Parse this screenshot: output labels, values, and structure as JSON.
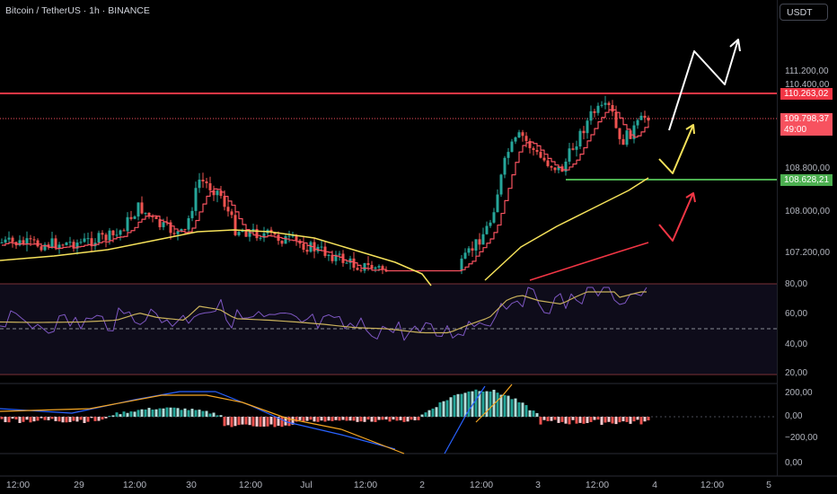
{
  "header": {
    "symbol_title": "Bitcoin / TetherUS · 1h · BINANCE",
    "currency_button": "USDT"
  },
  "price_axis": {
    "labels": [
      "111.200,00",
      "110.400,00",
      "108.800,00",
      "108.000,00",
      "107.200,00"
    ],
    "resistance_label": "110.263,02",
    "last_price_label": "109.798,37",
    "countdown_label": "49:00",
    "support_label": "108.628,21"
  },
  "rsi_axis": {
    "labels": [
      "80,00",
      "60,00",
      "40,00",
      "20,00"
    ]
  },
  "macd_axis": {
    "labels": [
      "200,00",
      "0,00",
      "−200,00"
    ]
  },
  "volume_axis": {
    "labels": [
      "0,00"
    ]
  },
  "time_axis": {
    "labels": [
      "12:00",
      "29",
      "12:00",
      "30",
      "12:00",
      "Jul",
      "12:00",
      "2",
      "12:00",
      "3",
      "12:00",
      "4",
      "12:00",
      "5"
    ]
  },
  "colors": {
    "up": "#26a69a",
    "down": "#ef5350",
    "resistance": "#f23645",
    "support": "#4caf50",
    "ma_fast": "#f7525f",
    "ma_slow": "#f5e15a",
    "rsi": "#7e57c2",
    "rsi_signal": "#c9b15b",
    "macd_line": "#2962ff",
    "macd_signal": "#f5a623"
  }
}
